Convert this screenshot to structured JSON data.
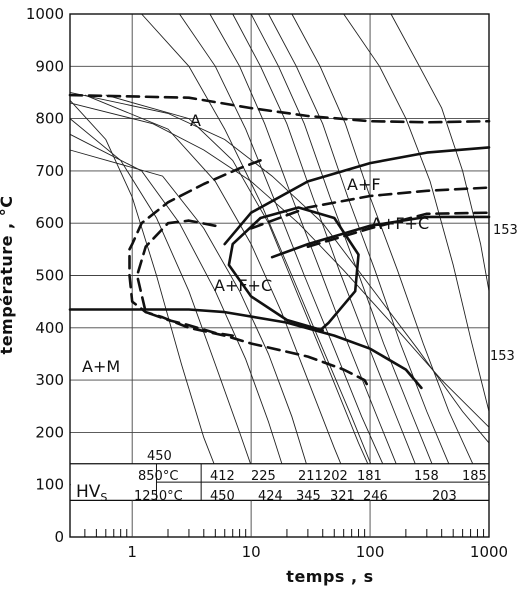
{
  "chart_data": {
    "type": "line",
    "xlabel": "temps , s",
    "ylabel": "température , °C",
    "x_scale": "log",
    "xlim": [
      0.3,
      1000
    ],
    "ylim": [
      0,
      1000
    ],
    "x_ticks": [
      "1",
      "10",
      "100",
      "1000"
    ],
    "y_ticks": [
      "0",
      "100",
      "200",
      "300",
      "400",
      "500",
      "600",
      "700",
      "800",
      "900",
      "1000"
    ],
    "grid": true,
    "region_labels": [
      "A",
      "A+F",
      "A+F+C",
      "A+F+C",
      "A+M"
    ],
    "right_labels": [
      "153",
      "153"
    ],
    "small_labels": [
      "450"
    ],
    "hardness_table": {
      "title": "HV",
      "title_sub": "S",
      "rows": [
        {
          "label": "850°C",
          "values": [
            "412",
            "225",
            "211",
            "202",
            "181",
            "158",
            "185"
          ]
        },
        {
          "label": "1250°C",
          "values": [
            "450",
            "424",
            "345",
            "321",
            "246",
            "203"
          ]
        }
      ]
    },
    "series": [
      {
        "style": "dashed-bold",
        "points": [
          [
            0.3,
            845
          ],
          [
            3,
            840
          ],
          [
            10,
            820
          ],
          [
            30,
            805
          ],
          [
            100,
            795
          ],
          [
            300,
            793
          ],
          [
            1000,
            795
          ]
        ]
      },
      {
        "style": "solid-bold",
        "points": [
          [
            6,
            560
          ],
          [
            10,
            620
          ],
          [
            30,
            680
          ],
          [
            100,
            715
          ],
          [
            300,
            735
          ],
          [
            1000,
            745
          ]
        ]
      },
      {
        "style": "dashed-bold",
        "points": [
          [
            10,
            590
          ],
          [
            30,
            630
          ],
          [
            100,
            652
          ],
          [
            300,
            662
          ],
          [
            1000,
            668
          ]
        ]
      },
      {
        "style": "solid-bold",
        "points": [
          [
            15,
            535
          ],
          [
            30,
            560
          ],
          [
            100,
            595
          ],
          [
            300,
            612
          ],
          [
            1000,
            612
          ]
        ]
      },
      {
        "style": "dashed-bold",
        "points": [
          [
            30,
            555
          ],
          [
            100,
            590
          ],
          [
            300,
            618
          ],
          [
            1000,
            620
          ]
        ]
      },
      {
        "style": "dashed-bold",
        "points": [
          [
            12,
            720
          ],
          [
            8,
            705
          ],
          [
            4,
            675
          ],
          [
            2,
            640
          ],
          [
            1.2,
            600
          ],
          [
            1,
            560
          ],
          [
            0.95,
            550
          ],
          [
            0.95,
            500
          ],
          [
            1,
            450
          ],
          [
            1.3,
            430
          ],
          [
            1.8,
            420
          ],
          [
            3,
            400
          ],
          [
            6,
            385
          ],
          [
            10,
            370
          ],
          [
            30,
            345
          ],
          [
            60,
            320
          ],
          [
            90,
            300
          ],
          [
            95,
            290
          ]
        ]
      },
      {
        "style": "dashed-bold",
        "points": [
          [
            5,
            595
          ],
          [
            3,
            605
          ],
          [
            2,
            600
          ],
          [
            1.3,
            555
          ],
          [
            1.1,
            500
          ],
          [
            1.3,
            430
          ],
          [
            2,
            415
          ],
          [
            3,
            405
          ],
          [
            5,
            390
          ],
          [
            7,
            385
          ]
        ]
      },
      {
        "style": "solid-bold",
        "points": [
          [
            0.3,
            435
          ],
          [
            3,
            435
          ],
          [
            6,
            430
          ],
          [
            20,
            410
          ],
          [
            50,
            385
          ],
          [
            100,
            360
          ],
          [
            200,
            320
          ],
          [
            270,
            285
          ]
        ]
      },
      {
        "style": "solid-bold",
        "points": [
          [
            40,
            395
          ],
          [
            20,
            415
          ],
          [
            10,
            460
          ],
          [
            6.5,
            520
          ],
          [
            7,
            560
          ],
          [
            12,
            610
          ],
          [
            25,
            630
          ],
          [
            50,
            610
          ],
          [
            80,
            540
          ],
          [
            75,
            470
          ],
          [
            45,
            410
          ],
          [
            38,
            395
          ]
        ]
      }
    ]
  }
}
